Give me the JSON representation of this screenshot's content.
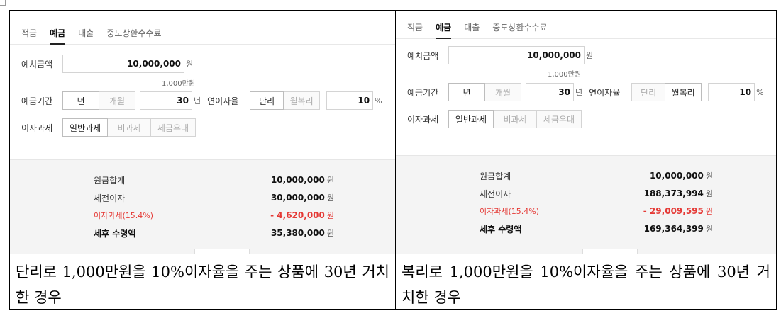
{
  "panels": [
    {
      "tabs": [
        "적금",
        "예금",
        "대출",
        "중도상환수수료"
      ],
      "active_tab": 1,
      "deposit_label": "예치금액",
      "deposit_value": "10,000,000",
      "deposit_unit": "원",
      "deposit_note": "1,000만원",
      "period_label": "예금기간",
      "period_options": [
        "년",
        "개월"
      ],
      "period_value": "30",
      "period_unit": "년",
      "rate_label": "연이자율",
      "rate_options": [
        "단리",
        "월복리"
      ],
      "rate_selected": 0,
      "rate_value": "10",
      "rate_unit": "%",
      "tax_label": "이자과세",
      "tax_options": [
        "일반과세",
        "비과세",
        "세금우대"
      ],
      "results": {
        "principal_label": "원금합계",
        "principal_value": "10,000,000",
        "interest_label": "세전이자",
        "interest_value": "30,000,000",
        "tax_label": "이자과세(15.4%)",
        "tax_value": "- 4,620,000",
        "net_label": "세후 수령액",
        "net_value": "35,380,000",
        "unit": "원"
      },
      "caption": "단리로 1,000만원을 10%이자율을 주는 상품에 30년 거치한 경우"
    },
    {
      "tabs": [
        "적금",
        "예금",
        "대출",
        "중도상환수수료"
      ],
      "active_tab": 1,
      "deposit_label": "예치금액",
      "deposit_value": "10,000,000",
      "deposit_unit": "원",
      "deposit_note": "1,000만원",
      "period_label": "예금기간",
      "period_options": [
        "년",
        "개월"
      ],
      "period_value": "30",
      "period_unit": "년",
      "rate_label": "연이자율",
      "rate_options": [
        "단리",
        "월복리"
      ],
      "rate_selected": 1,
      "rate_value": "10",
      "rate_unit": "%",
      "tax_label": "이자과세",
      "tax_options": [
        "일반과세",
        "비과세",
        "세금우대"
      ],
      "results": {
        "principal_label": "원금합계",
        "principal_value": "10,000,000",
        "interest_label": "세전이자",
        "interest_value": "188,373,994",
        "tax_label": "이자과세(15.4%)",
        "tax_value": "- 29,009,595",
        "net_label": "세후 수령액",
        "net_value": "169,364,399",
        "unit": "원"
      },
      "caption": "복리로 1,000만원을 10%이자율을 주는 상품에 30년 거치한 경우"
    }
  ]
}
